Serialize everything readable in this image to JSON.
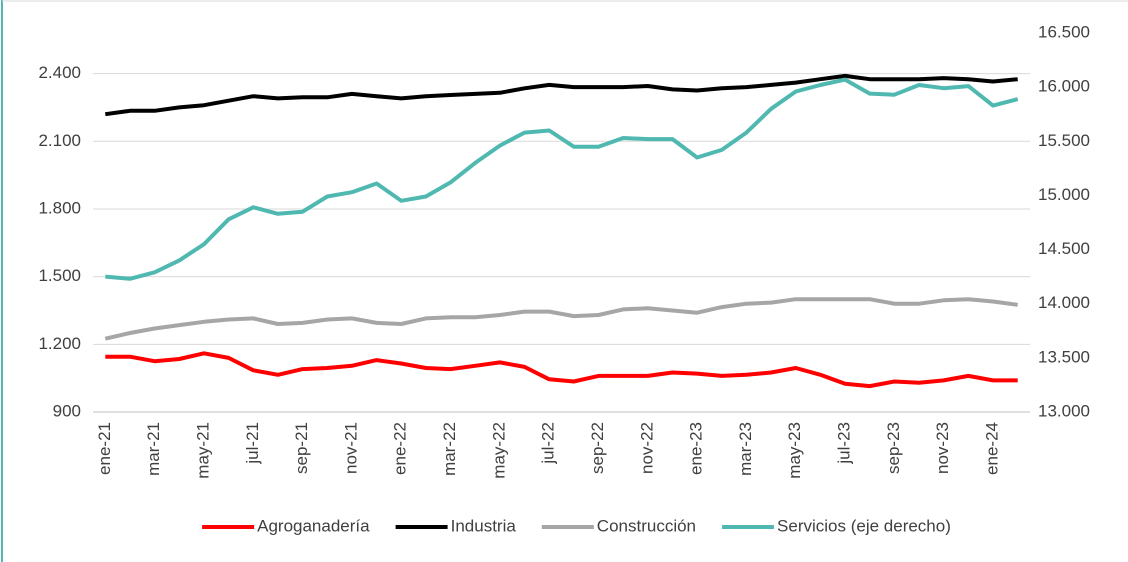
{
  "chart_data": {
    "type": "line",
    "categories": [
      "ene-21",
      null,
      "mar-21",
      null,
      "may-21",
      null,
      "jul-21",
      null,
      "sep-21",
      null,
      "nov-21",
      null,
      "ene-22",
      null,
      "mar-22",
      null,
      "may-22",
      null,
      "jul-22",
      null,
      "sep-22",
      null,
      "nov-22",
      null,
      "ene-23",
      null,
      "mar-23",
      null,
      "may-23",
      null,
      "jul-23",
      null,
      "sep-23",
      null,
      "nov-23",
      null,
      "ene-24",
      null
    ],
    "series": [
      {
        "name": "Agroganadería",
        "color": "#ff0000",
        "values": [
          1145,
          1145,
          1125,
          1135,
          1160,
          1140,
          1085,
          1065,
          1090,
          1095,
          1105,
          1130,
          1115,
          1095,
          1090,
          1105,
          1120,
          1100,
          1045,
          1035,
          1060,
          1060,
          1060,
          1075,
          1070,
          1060,
          1065,
          1075,
          1095,
          1065,
          1025,
          1015,
          1035,
          1030,
          1040,
          1060,
          1040,
          1040
        ]
      },
      {
        "name": "Industria",
        "color": "#000000",
        "values": [
          2220,
          2235,
          2235,
          2250,
          2260,
          2280,
          2300,
          2290,
          2295,
          2295,
          2310,
          2300,
          2290,
          2300,
          2305,
          2310,
          2315,
          2335,
          2350,
          2340,
          2340,
          2340,
          2345,
          2330,
          2325,
          2335,
          2340,
          2350,
          2360,
          2375,
          2390,
          2375,
          2375,
          2375,
          2380,
          2375,
          2365,
          2375
        ]
      },
      {
        "name": "Construcción",
        "color": "#a6a6a6",
        "values": [
          1225,
          1250,
          1270,
          1285,
          1300,
          1310,
          1315,
          1290,
          1295,
          1310,
          1315,
          1295,
          1290,
          1315,
          1320,
          1320,
          1330,
          1345,
          1345,
          1325,
          1330,
          1355,
          1360,
          1350,
          1340,
          1365,
          1380,
          1385,
          1400,
          1400,
          1400,
          1400,
          1380,
          1380,
          1395,
          1400,
          1390,
          1375
        ]
      },
      {
        "name": "Servicios (eje derecho)",
        "color": "#4fb8b0",
        "axis": "y2",
        "values": [
          14250,
          14230,
          14290,
          14400,
          14550,
          14780,
          14890,
          14830,
          14850,
          14990,
          15030,
          15110,
          14950,
          14990,
          15120,
          15300,
          15460,
          15580,
          15600,
          15450,
          15450,
          15530,
          15520,
          15520,
          15350,
          15420,
          15580,
          15800,
          15960,
          16020,
          16070,
          15940,
          15930,
          16020,
          15990,
          16010,
          15830,
          15890
        ]
      }
    ],
    "ylim": [
      900,
      2580
    ],
    "yticks": [
      {
        "value": 900,
        "label": "900"
      },
      {
        "value": 1200,
        "label": "1.200"
      },
      {
        "value": 1500,
        "label": "1.500"
      },
      {
        "value": 1800,
        "label": "1.800"
      },
      {
        "value": 2100,
        "label": "2.100"
      },
      {
        "value": 2400,
        "label": "2.400"
      }
    ],
    "y2lim": [
      13000,
      16500
    ],
    "y2ticks": [
      {
        "value": 13000,
        "label": "13.000"
      },
      {
        "value": 13500,
        "label": "13.500"
      },
      {
        "value": 14000,
        "label": "14.000"
      },
      {
        "value": 14500,
        "label": "14.500"
      },
      {
        "value": 15000,
        "label": "15.000"
      },
      {
        "value": 15500,
        "label": "15.500"
      },
      {
        "value": 16000,
        "label": "16.000"
      },
      {
        "value": 16500,
        "label": "16.500"
      }
    ],
    "grid": true,
    "legend": "bottom"
  }
}
